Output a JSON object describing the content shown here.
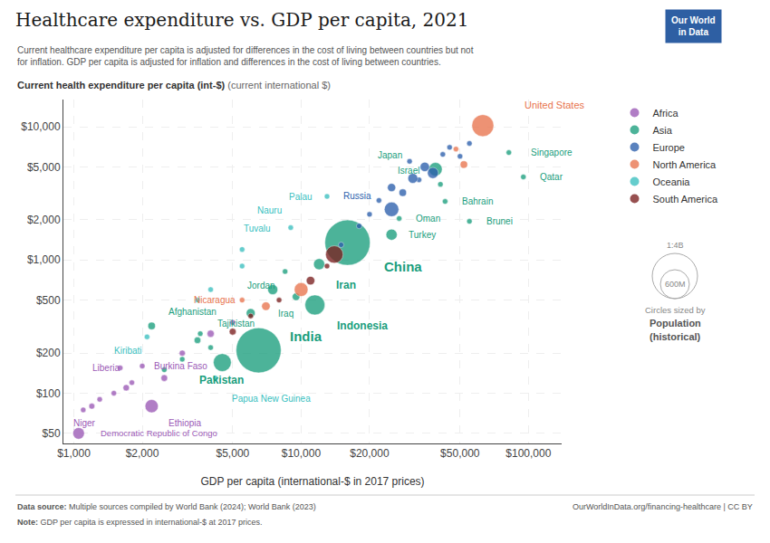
{
  "chart_data": {
    "type": "scatter",
    "title": "Healthcare expenditure vs. GDP per capita, 2021",
    "subtitle": [
      "Current healthcare expenditure per capita is adjusted for differences in the cost of living between countries but not",
      "for inflation. GDP per capita is adjusted for inflation and differences in the cost of living between countries."
    ],
    "ylabel": [
      "Current health expenditure per capita (int-$)",
      " (current international $)"
    ],
    "xlabel": "GDP per capita (international-$ in 2017 prices)",
    "source": [
      "Data source:",
      " Multiple sources compiled by World Bank (2024); World Bank (2023)"
    ],
    "url": "OurWorldInData.org/financing-healthcare | CC BY",
    "note": [
      "Note:",
      " GDP per capita is expressed in international-$ at 2017 prices."
    ],
    "annotations": [
      {
        "text": "Our World\nin Data",
        "color": "#2E5FA3"
      }
    ],
    "size_legend": {
      "labels": [
        "1:4B",
        "600M"
      ],
      "text": [
        "Circles sized by",
        "Population",
        "(historical)"
      ]
    },
    "log": true,
    "grid": true,
    "legend": "right",
    "marker": "circle",
    "xlim": [
      900,
      140000
    ],
    "ylim": [
      42,
      16000
    ],
    "xticks": [
      {
        "value": 1000,
        "label": "$1,000"
      },
      {
        "value": 2000,
        "label": "$2,000"
      },
      {
        "value": 5000,
        "label": "$5,000"
      },
      {
        "value": 10000,
        "label": "$10,000"
      },
      {
        "value": 20000,
        "label": "$20,000"
      },
      {
        "value": 50000,
        "label": "$50,000"
      },
      {
        "value": 100000,
        "label": "$100,000"
      }
    ],
    "yticks": [
      {
        "value": 50,
        "label": "$50"
      },
      {
        "value": 100,
        "label": "$100"
      },
      {
        "value": 200,
        "label": "$200"
      },
      {
        "value": 500,
        "label": "$500"
      },
      {
        "value": 1000,
        "label": "$1,000"
      },
      {
        "value": 2000,
        "label": "$2,000"
      },
      {
        "value": 5000,
        "label": "$5,000"
      },
      {
        "value": 10000,
        "label": "$10,000"
      }
    ],
    "series": [
      {
        "name": "Africa",
        "color": "#9B59B6",
        "x": [
          2000,
          1600,
          2200,
          1200,
          1050,
          1100,
          1800,
          2500,
          3000,
          1500,
          4000,
          1300,
          1700,
          5000
        ],
        "values": [
          160,
          155,
          80,
          80,
          50,
          75,
          120,
          130,
          200,
          100,
          280,
          90,
          110,
          340
        ],
        "sizes": [
          21000000,
          5000000,
          120000000,
          24000000,
          92000000,
          2000000,
          20000000,
          30000000,
          25000000,
          18000000,
          35000000,
          12000000,
          28000000,
          22000000
        ],
        "labels": [
          "Burkina Faso",
          "Liberia",
          "Ethiopia",
          "Niger",
          "Democratic Republic of Congo",
          null,
          null,
          null,
          null,
          null,
          null,
          null,
          null,
          null
        ]
      },
      {
        "name": "Asia",
        "color": "#1A9E7D",
        "x": [
          82000,
          39000,
          95000,
          41000,
          43000,
          27000,
          55000,
          25000,
          16000,
          12000,
          8500,
          9500,
          11500,
          2200,
          3600,
          6500,
          4500,
          4000,
          3000,
          7500,
          6000,
          3500,
          2500
        ],
        "values": [
          6400,
          4800,
          4200,
          3700,
          2750,
          2050,
          1950,
          1550,
          1350,
          930,
          820,
          530,
          460,
          320,
          280,
          210,
          170,
          220,
          180,
          600,
          400,
          250,
          150
        ],
        "sizes": [
          5800000,
          125000000,
          2900000,
          9200000,
          1700000,
          4500000,
          440000,
          85000000,
          1410000000,
          85000000,
          10200000,
          40000000,
          273000000,
          38000000,
          9500000,
          1393000000,
          220000000,
          11000000,
          16000000,
          70000000,
          55000000,
          30000000,
          15000000
        ],
        "labels": [
          "Singapore",
          "Japan",
          "Qatar",
          "Israel",
          "Bahrain",
          "Oman",
          "Brunei",
          "Turkey",
          "China",
          "Iran",
          "Jordan",
          "Iraq",
          "Indonesia",
          "Afghanistan",
          "Tajikistan",
          "India",
          "Pakistan",
          null,
          null,
          null,
          null,
          null,
          null
        ]
      },
      {
        "name": "Europe",
        "color": "#2C5FAC",
        "x": [
          25000,
          30000,
          45000,
          50000,
          35000,
          55000,
          42000,
          38000,
          28000,
          33000,
          20000,
          18000,
          15000,
          25000,
          31000,
          22000
        ],
        "values": [
          2400,
          5500,
          7000,
          6000,
          5000,
          7500,
          6200,
          4500,
          3200,
          4000,
          2200,
          1800,
          1300,
          3500,
          4100,
          2800
        ],
        "sizes": [
          145000000,
          5000000,
          8000000,
          4000000,
          60000000,
          10000000,
          7000000,
          83000000,
          38000000,
          10000000,
          20000000,
          9000000,
          7000000,
          46000000,
          67000000,
          17000000
        ],
        "labels": [
          "Russia",
          null,
          null,
          null,
          null,
          null,
          null,
          null,
          null,
          null,
          null,
          null,
          null,
          null,
          null,
          null
        ]
      },
      {
        "name": "North America",
        "color": "#E8744E",
        "x": [
          63000,
          5500,
          48000,
          52000,
          10000,
          7000
        ],
        "values": [
          10200,
          500,
          6800,
          5200,
          600,
          450
        ],
        "sizes": [
          330000000,
          6700000,
          5000000,
          38000000,
          130000000,
          50000000
        ],
        "labels": [
          "United States",
          "Nicaragua",
          null,
          null,
          null,
          null
        ]
      },
      {
        "name": "Oceania",
        "color": "#3ABFBF",
        "x": [
          13000,
          9000,
          5500,
          2100,
          4200,
          5500,
          4000,
          3500
        ],
        "values": [
          3000,
          1750,
          1200,
          265,
          130,
          900,
          600,
          500
        ],
        "sizes": [
          18000,
          10000,
          11000,
          119000,
          9100000,
          6000000,
          500000,
          200000
        ],
        "labels": [
          "Palau",
          "Nauru",
          "Tuvalu",
          "Kiribati",
          "Papua New Guinea",
          null,
          null,
          null
        ]
      },
      {
        "name": "South America",
        "color": "#7B2020",
        "x": [
          13000,
          14000,
          11000,
          8000,
          6000,
          5000
        ],
        "values": [
          900,
          1100,
          700,
          500,
          380,
          290
        ],
        "sizes": [
          12000000,
          210000000,
          50000000,
          18000000,
          17000000,
          32000000
        ],
        "labels": [
          null,
          null,
          null,
          null,
          null,
          null
        ]
      }
    ]
  }
}
